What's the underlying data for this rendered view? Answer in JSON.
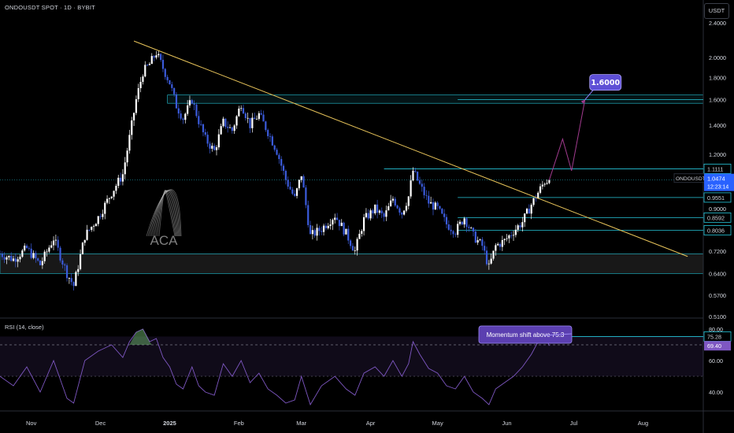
{
  "header": {
    "symbol": "ONDOUSDT SPOT · 1D · BYBIT",
    "currency_button": "USDT"
  },
  "watermark": {
    "text": "ACA"
  },
  "colors": {
    "background": "#000000",
    "candle_up": "#ffffff",
    "candle_down": "#3b5bdb",
    "level": "#26c6da",
    "trendline": "#e8c45a",
    "projection": "#a23b8f",
    "target": "#5e4fd6",
    "rsi": "#7e57c2",
    "price_label": "#2962ff"
  },
  "chart_data": {
    "type": "candlestick",
    "symbol": "ONDOUSDT",
    "timeframe": "1D",
    "exchange": "BYBIT",
    "y_scale": "log",
    "ylim": [
      0.51,
      2.45
    ],
    "x_ticks": [
      "Nov",
      "Dec",
      "2025",
      "Feb",
      "Mar",
      "Apr",
      "May",
      "Jun",
      "Jul",
      "Aug"
    ],
    "y_ticks": [
      "2.4000",
      "2.0000",
      "1.8000",
      "1.6000",
      "1.4000",
      "1.2000",
      "0.9000",
      "0.7200",
      "0.6400",
      "0.5700",
      "0.5100"
    ],
    "price_path": [
      [
        0,
        0.71
      ],
      [
        6,
        0.69
      ],
      [
        12,
        0.73
      ],
      [
        18,
        0.67
      ],
      [
        24,
        0.77
      ],
      [
        30,
        0.64
      ],
      [
        33,
        0.6
      ],
      [
        38,
        0.78
      ],
      [
        44,
        0.86
      ],
      [
        50,
        0.98
      ],
      [
        55,
        1.08
      ],
      [
        58,
        1.31
      ],
      [
        61,
        1.6
      ],
      [
        64,
        1.85
      ],
      [
        67,
        1.93
      ],
      [
        70,
        2.05
      ],
      [
        73,
        1.89
      ],
      [
        76,
        1.75
      ],
      [
        79,
        1.55
      ],
      [
        82,
        1.45
      ],
      [
        86,
        1.6
      ],
      [
        89,
        1.43
      ],
      [
        92,
        1.3
      ],
      [
        96,
        1.22
      ],
      [
        100,
        1.42
      ],
      [
        104,
        1.36
      ],
      [
        108,
        1.57
      ],
      [
        112,
        1.4
      ],
      [
        116,
        1.48
      ],
      [
        120,
        1.35
      ],
      [
        124,
        1.22
      ],
      [
        128,
        1.05
      ],
      [
        132,
        0.95
      ],
      [
        135,
        1.08
      ],
      [
        139,
        0.78
      ],
      [
        144,
        0.81
      ],
      [
        150,
        0.87
      ],
      [
        155,
        0.79
      ],
      [
        159,
        0.72
      ],
      [
        163,
        0.85
      ],
      [
        168,
        0.9
      ],
      [
        172,
        0.86
      ],
      [
        176,
        0.95
      ],
      [
        180,
        0.88
      ],
      [
        183,
        0.96
      ],
      [
        185,
        1.1
      ],
      [
        188,
        1.02
      ],
      [
        192,
        0.93
      ],
      [
        196,
        0.9
      ],
      [
        200,
        0.83
      ],
      [
        204,
        0.8
      ],
      [
        208,
        0.86
      ],
      [
        212,
        0.78
      ],
      [
        216,
        0.74
      ],
      [
        219,
        0.66
      ],
      [
        222,
        0.74
      ],
      [
        226,
        0.76
      ],
      [
        230,
        0.8
      ],
      [
        234,
        0.84
      ],
      [
        238,
        0.92
      ],
      [
        241,
        0.98
      ],
      [
        244,
        1.04
      ],
      [
        246,
        1.0474
      ]
    ],
    "horizontal_levels": [
      1.6,
      1.1111,
      0.9551,
      0.8592,
      0.8036
    ],
    "axis_labels": [
      {
        "text": "1.1111",
        "value": 1.1111
      },
      {
        "text": "0.9551",
        "value": 0.9551
      },
      {
        "text": "0.8592",
        "value": 0.8592
      },
      {
        "text": "0.8036",
        "value": 0.8036
      }
    ],
    "current_price": {
      "symbol": "ONDOUSDT",
      "value": 1.0474,
      "display": "1.0474",
      "countdown": "12:23:14"
    },
    "support_zone": [
      0.64,
      0.71
    ],
    "resistance_zone": [
      1.57,
      1.64
    ],
    "trendline": {
      "start": [
        60,
        2.18
      ],
      "end": [
        308,
        0.7
      ]
    },
    "projection_path": [
      [
        246,
        1.0474
      ],
      [
        252,
        1.3
      ],
      [
        256,
        1.1
      ],
      [
        262,
        1.6
      ]
    ],
    "target": {
      "value": 1.6,
      "label": "1.6000"
    },
    "rsi": {
      "label": "RSI (14, close)",
      "ylim": [
        30,
        84
      ],
      "overbought": 70,
      "middle": 50,
      "upper_line": 75.28,
      "current": 69.4,
      "axis_labels": [
        "80.00",
        "75.28",
        "69.40",
        "60.00",
        "40.00"
      ],
      "annotation": "Momentum shift above 75.3",
      "path": [
        [
          0,
          50
        ],
        [
          6,
          44
        ],
        [
          12,
          56
        ],
        [
          18,
          40
        ],
        [
          24,
          60
        ],
        [
          30,
          36
        ],
        [
          33,
          33
        ],
        [
          38,
          60
        ],
        [
          44,
          66
        ],
        [
          50,
          70
        ],
        [
          55,
          62
        ],
        [
          58,
          72
        ],
        [
          61,
          78
        ],
        [
          64,
          80
        ],
        [
          67,
          72
        ],
        [
          70,
          74
        ],
        [
          73,
          62
        ],
        [
          76,
          56
        ],
        [
          79,
          45
        ],
        [
          82,
          42
        ],
        [
          86,
          56
        ],
        [
          89,
          44
        ],
        [
          92,
          40
        ],
        [
          96,
          38
        ],
        [
          100,
          58
        ],
        [
          104,
          50
        ],
        [
          108,
          60
        ],
        [
          112,
          46
        ],
        [
          116,
          52
        ],
        [
          120,
          42
        ],
        [
          124,
          38
        ],
        [
          128,
          33
        ],
        [
          132,
          35
        ],
        [
          135,
          50
        ],
        [
          139,
          32
        ],
        [
          144,
          44
        ],
        [
          150,
          50
        ],
        [
          155,
          42
        ],
        [
          159,
          38
        ],
        [
          163,
          52
        ],
        [
          168,
          56
        ],
        [
          172,
          50
        ],
        [
          176,
          60
        ],
        [
          180,
          50
        ],
        [
          183,
          58
        ],
        [
          185,
          72
        ],
        [
          188,
          64
        ],
        [
          192,
          55
        ],
        [
          196,
          52
        ],
        [
          200,
          44
        ],
        [
          204,
          42
        ],
        [
          208,
          50
        ],
        [
          212,
          40
        ],
        [
          216,
          36
        ],
        [
          219,
          32
        ],
        [
          222,
          42
        ],
        [
          226,
          46
        ],
        [
          230,
          50
        ],
        [
          234,
          56
        ],
        [
          238,
          64
        ],
        [
          241,
          72
        ],
        [
          244,
          76
        ],
        [
          246,
          69.4
        ]
      ]
    }
  }
}
